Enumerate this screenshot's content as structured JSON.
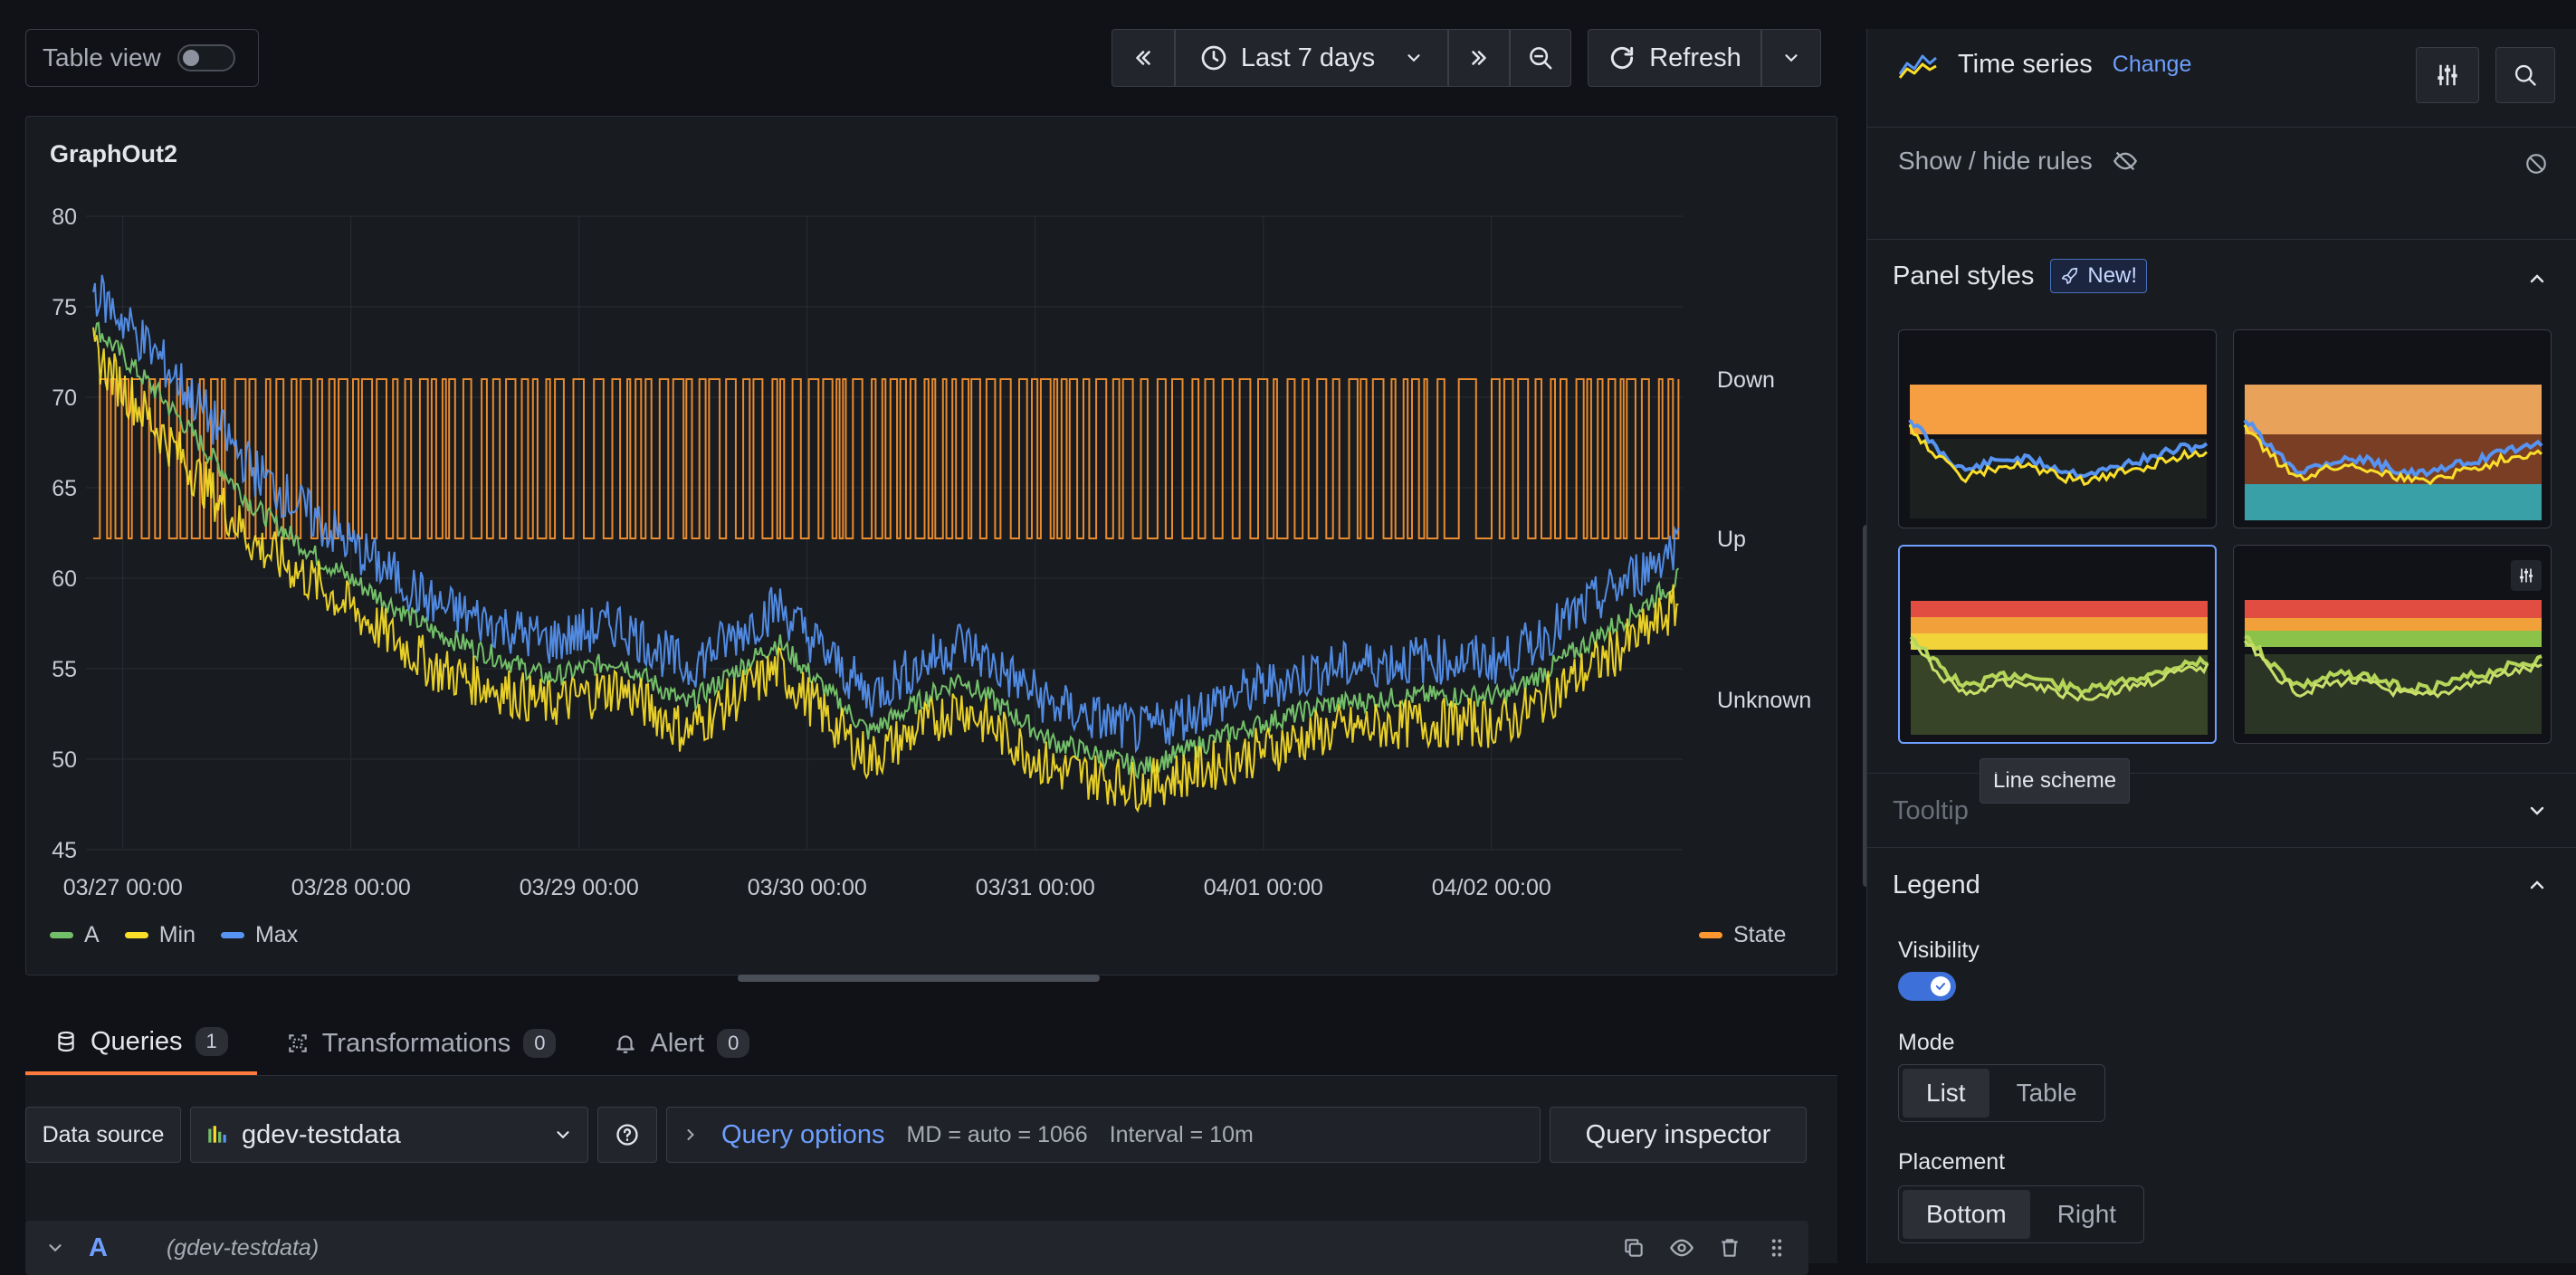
{
  "toolbar": {
    "table_view_label": "Table view",
    "time_range": "Last 7 days",
    "refresh_label": "Refresh"
  },
  "panel": {
    "title": "GraphOut2",
    "legend_left": [
      {
        "name": "A",
        "color": "#73bf69"
      },
      {
        "name": "Min",
        "color": "#fade2a"
      },
      {
        "name": "Max",
        "color": "#5794f2"
      }
    ],
    "legend_right": [
      {
        "name": "State",
        "color": "#ff9830"
      }
    ]
  },
  "chart_data": {
    "type": "line",
    "y_ticks": [
      "80",
      "75",
      "70",
      "65",
      "60",
      "55",
      "50",
      "45"
    ],
    "ylim": [
      45,
      80
    ],
    "x_ticks": [
      "03/27 00:00",
      "03/28 00:00",
      "03/29 00:00",
      "03/30 00:00",
      "03/31 00:00",
      "04/01 00:00",
      "04/02 00:00"
    ],
    "state_labels": [
      "Down",
      "Up",
      "Unknown"
    ],
    "x_days": [
      0,
      0.3,
      0.7,
      1.0,
      1.5,
      2.0,
      2.3,
      2.6,
      3.0,
      3.4,
      3.8,
      4.2,
      4.6,
      5.0,
      5.4,
      5.8,
      6.2,
      6.5,
      6.8,
      6.95
    ],
    "series": [
      {
        "name": "A",
        "color": "#73bf69",
        "values": [
          74,
          70,
          64,
          61,
          57,
          54.5,
          55.5,
          53,
          56.5,
          51.5,
          54.5,
          51,
          49.5,
          51.5,
          53,
          53.5,
          53.5,
          56,
          58.5,
          60
        ]
      },
      {
        "name": "Min",
        "color": "#fade2a",
        "values": [
          72.5,
          68,
          62,
          59.5,
          55,
          53,
          54,
          51.5,
          55,
          50,
          53,
          49.5,
          48.5,
          50,
          51.5,
          52,
          52,
          54.5,
          57,
          58.5
        ]
      },
      {
        "name": "Max",
        "color": "#5794f2",
        "values": [
          76,
          72,
          66,
          63,
          58.5,
          56.5,
          57.5,
          55,
          58.5,
          53.5,
          56.5,
          53,
          51.5,
          53.5,
          55,
          55.5,
          55.5,
          58,
          60.5,
          62
        ]
      }
    ],
    "state_series": {
      "name": "State",
      "color": "#ff9830",
      "values": [
        "Down",
        "Up"
      ]
    }
  },
  "tabs": [
    {
      "label": "Queries",
      "count": "1"
    },
    {
      "label": "Transformations",
      "count": "0"
    },
    {
      "label": "Alert",
      "count": "0"
    }
  ],
  "query": {
    "ds_label": "Data source",
    "ds_value": "gdev-testdata",
    "options_label": "Query options",
    "md": "MD = auto = 1066",
    "interval": "Interval = 10m",
    "inspector": "Query inspector",
    "row_letter": "A",
    "row_ds": "(gdev-testdata)"
  },
  "sidebar": {
    "viz_name": "Time series",
    "change_label": "Change",
    "show_hide_rules": "Show / hide rules",
    "panel_styles": "Panel styles",
    "new_badge": "New!",
    "tooltip_hint": "Line scheme",
    "tooltip_section": "Tooltip",
    "legend_section": "Legend",
    "visibility_label": "Visibility",
    "mode_label": "Mode",
    "mode_options": [
      "List",
      "Table"
    ],
    "placement_label": "Placement",
    "placement_options": [
      "Bottom",
      "Right"
    ]
  },
  "icons": [
    "double-chevron-left-icon",
    "clock-icon",
    "chevron-down-icon",
    "double-chevron-right-icon",
    "zoom-out-icon",
    "refresh-icon",
    "sliders-icon",
    "search-icon",
    "eye-slash-icon",
    "circle-slash-icon",
    "rocket-icon",
    "chevron-up-icon",
    "database-icon",
    "transform-icon",
    "bell-icon",
    "question-circle-icon",
    "chevron-right-icon",
    "copy-icon",
    "eye-icon",
    "trash-icon",
    "drag-handle-icon"
  ]
}
